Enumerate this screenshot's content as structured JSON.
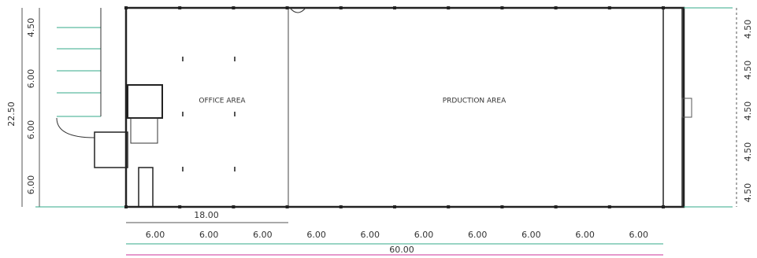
{
  "rooms": [
    "OFFICE AREA",
    "PRDUCTION AREA"
  ],
  "left_dims": {
    "total": "22.50",
    "segments": [
      "4.50",
      "6.00",
      "6.00",
      "6.00"
    ]
  },
  "bottom_dims": {
    "office": "18.00",
    "bays": [
      "6.00",
      "6.00",
      "6.00",
      "6.00",
      "6.00",
      "6.00",
      "6.00",
      "6.00",
      "6.00",
      "6.00"
    ],
    "total": "60.00"
  },
  "right_dims": {
    "segments": [
      "4.50",
      "4.50",
      "4.50",
      "4.50",
      "4.50"
    ]
  }
}
